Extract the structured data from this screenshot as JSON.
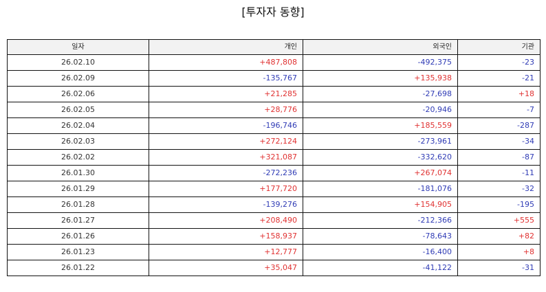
{
  "title": "[투자자 동향]",
  "colors": {
    "positive": "#e03131",
    "negative": "#2f3bb5",
    "header_bg": "#f2f2f2",
    "border": "#111111"
  },
  "table": {
    "columns": [
      "일자",
      "개인",
      "외국인",
      "기관"
    ],
    "rows": [
      [
        "26.02.10",
        "+487,808",
        "-492,375",
        "-23"
      ],
      [
        "26.02.09",
        "-135,767",
        "+135,938",
        "-21"
      ],
      [
        "26.02.06",
        "+21,285",
        "-27,698",
        "+18"
      ],
      [
        "26.02.05",
        "+28,776",
        "-20,946",
        "-7"
      ],
      [
        "26.02.04",
        "-196,746",
        "+185,559",
        "-287"
      ],
      [
        "26.02.03",
        "+272,124",
        "-273,961",
        "-34"
      ],
      [
        "26.02.02",
        "+321,087",
        "-332,620",
        "-87"
      ],
      [
        "26.01.30",
        "-272,236",
        "+267,074",
        "-11"
      ],
      [
        "26.01.29",
        "+177,720",
        "-181,076",
        "-32"
      ],
      [
        "26.01.28",
        "-139,276",
        "+154,905",
        "-195"
      ],
      [
        "26.01.27",
        "+208,490",
        "-212,366",
        "+555"
      ],
      [
        "26.01.26",
        "+158,937",
        "-78,643",
        "+82"
      ],
      [
        "26.01.23",
        "+12,777",
        "-16,400",
        "+8"
      ],
      [
        "26.01.22",
        "+35,047",
        "-41,122",
        "-31"
      ]
    ]
  }
}
